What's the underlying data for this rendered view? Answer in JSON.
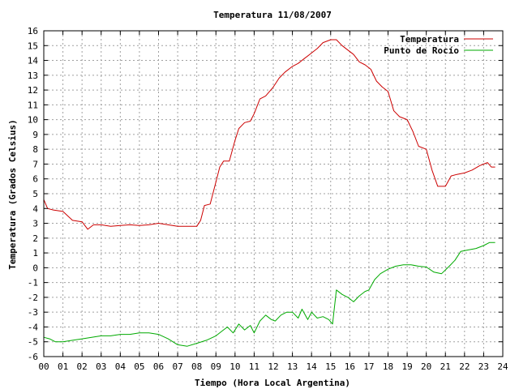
{
  "chart_data": {
    "type": "line",
    "title": "Temperatura 11/08/2007",
    "xlabel": "Tiempo (Hora Local Argentina)",
    "ylabel": "Temperatura (Grados Celsius)",
    "xlim": [
      0,
      24
    ],
    "ylim": [
      -6,
      16
    ],
    "x_ticks": [
      "00",
      "01",
      "02",
      "03",
      "04",
      "05",
      "06",
      "07",
      "08",
      "09",
      "10",
      "11",
      "12",
      "13",
      "14",
      "15",
      "16",
      "17",
      "18",
      "19",
      "20",
      "21",
      "22",
      "23",
      "24"
    ],
    "y_ticks": [
      "-6",
      "-5",
      "-4",
      "-3",
      "-2",
      "-1",
      "0",
      "1",
      "2",
      "3",
      "4",
      "5",
      "6",
      "7",
      "8",
      "9",
      "10",
      "11",
      "12",
      "13",
      "14",
      "15",
      "16"
    ],
    "grid": true,
    "legend_position": "top-right",
    "series": [
      {
        "name": "Temperatura",
        "color": "#cc0000",
        "points": [
          [
            0,
            4.6
          ],
          [
            0.2,
            4.0
          ],
          [
            0.5,
            3.9
          ],
          [
            1.0,
            3.8
          ],
          [
            1.5,
            3.2
          ],
          [
            2.0,
            3.1
          ],
          [
            2.3,
            2.6
          ],
          [
            2.6,
            2.9
          ],
          [
            3.0,
            2.9
          ],
          [
            3.5,
            2.8
          ],
          [
            4.0,
            2.85
          ],
          [
            4.5,
            2.9
          ],
          [
            5.0,
            2.85
          ],
          [
            5.5,
            2.9
          ],
          [
            6.0,
            3.0
          ],
          [
            6.5,
            2.9
          ],
          [
            7.0,
            2.8
          ],
          [
            7.5,
            2.8
          ],
          [
            8.0,
            2.8
          ],
          [
            8.2,
            3.2
          ],
          [
            8.4,
            4.2
          ],
          [
            8.7,
            4.3
          ],
          [
            9.0,
            5.8
          ],
          [
            9.2,
            6.8
          ],
          [
            9.4,
            7.2
          ],
          [
            9.7,
            7.2
          ],
          [
            10.0,
            8.6
          ],
          [
            10.2,
            9.4
          ],
          [
            10.5,
            9.8
          ],
          [
            10.8,
            9.9
          ],
          [
            11.0,
            10.4
          ],
          [
            11.3,
            11.4
          ],
          [
            11.6,
            11.6
          ],
          [
            12.0,
            12.2
          ],
          [
            12.3,
            12.8
          ],
          [
            12.6,
            13.2
          ],
          [
            13.0,
            13.6
          ],
          [
            13.3,
            13.8
          ],
          [
            13.6,
            14.1
          ],
          [
            14.0,
            14.5
          ],
          [
            14.3,
            14.8
          ],
          [
            14.6,
            15.2
          ],
          [
            15.0,
            15.4
          ],
          [
            15.3,
            15.4
          ],
          [
            15.6,
            15.0
          ],
          [
            15.9,
            14.7
          ],
          [
            16.2,
            14.4
          ],
          [
            16.5,
            13.9
          ],
          [
            16.8,
            13.7
          ],
          [
            17.1,
            13.4
          ],
          [
            17.4,
            12.6
          ],
          [
            17.7,
            12.2
          ],
          [
            18.0,
            11.9
          ],
          [
            18.3,
            10.6
          ],
          [
            18.6,
            10.2
          ],
          [
            19.0,
            10.0
          ],
          [
            19.3,
            9.2
          ],
          [
            19.6,
            8.2
          ],
          [
            20.0,
            8.0
          ],
          [
            20.3,
            6.6
          ],
          [
            20.6,
            5.5
          ],
          [
            21.0,
            5.5
          ],
          [
            21.3,
            6.2
          ],
          [
            21.6,
            6.3
          ],
          [
            22.0,
            6.4
          ],
          [
            22.4,
            6.6
          ],
          [
            22.8,
            6.9
          ],
          [
            23.0,
            7.0
          ],
          [
            23.2,
            7.1
          ],
          [
            23.4,
            6.8
          ],
          [
            23.6,
            6.8
          ]
        ]
      },
      {
        "name": "Punto de Rocío",
        "color": "#00aa00",
        "points": [
          [
            0,
            -4.7
          ],
          [
            0.3,
            -4.8
          ],
          [
            0.6,
            -5.0
          ],
          [
            1.0,
            -5.0
          ],
          [
            1.5,
            -4.9
          ],
          [
            2.0,
            -4.8
          ],
          [
            2.5,
            -4.7
          ],
          [
            3.0,
            -4.6
          ],
          [
            3.5,
            -4.6
          ],
          [
            4.0,
            -4.5
          ],
          [
            4.5,
            -4.5
          ],
          [
            5.0,
            -4.4
          ],
          [
            5.5,
            -4.4
          ],
          [
            6.0,
            -4.5
          ],
          [
            6.5,
            -4.8
          ],
          [
            7.0,
            -5.2
          ],
          [
            7.5,
            -5.3
          ],
          [
            8.0,
            -5.1
          ],
          [
            8.5,
            -4.9
          ],
          [
            9.0,
            -4.6
          ],
          [
            9.3,
            -4.3
          ],
          [
            9.6,
            -4.0
          ],
          [
            9.9,
            -4.4
          ],
          [
            10.2,
            -3.8
          ],
          [
            10.5,
            -4.2
          ],
          [
            10.8,
            -3.9
          ],
          [
            11.0,
            -4.4
          ],
          [
            11.3,
            -3.6
          ],
          [
            11.6,
            -3.2
          ],
          [
            11.9,
            -3.5
          ],
          [
            12.1,
            -3.6
          ],
          [
            12.4,
            -3.2
          ],
          [
            12.7,
            -3.0
          ],
          [
            13.0,
            -3.0
          ],
          [
            13.3,
            -3.4
          ],
          [
            13.5,
            -2.8
          ],
          [
            13.8,
            -3.5
          ],
          [
            14.0,
            -3.0
          ],
          [
            14.3,
            -3.4
          ],
          [
            14.6,
            -3.3
          ],
          [
            14.9,
            -3.5
          ],
          [
            15.1,
            -3.8
          ],
          [
            15.3,
            -1.5
          ],
          [
            15.6,
            -1.8
          ],
          [
            15.9,
            -2.0
          ],
          [
            16.2,
            -2.3
          ],
          [
            16.5,
            -1.9
          ],
          [
            16.8,
            -1.6
          ],
          [
            17.0,
            -1.5
          ],
          [
            17.3,
            -0.8
          ],
          [
            17.6,
            -0.4
          ],
          [
            18.0,
            -0.1
          ],
          [
            18.4,
            0.1
          ],
          [
            18.8,
            0.2
          ],
          [
            19.2,
            0.2
          ],
          [
            19.6,
            0.1
          ],
          [
            20.0,
            0.05
          ],
          [
            20.4,
            -0.3
          ],
          [
            20.8,
            -0.4
          ],
          [
            21.2,
            0.1
          ],
          [
            21.5,
            0.5
          ],
          [
            21.8,
            1.1
          ],
          [
            22.2,
            1.2
          ],
          [
            22.6,
            1.3
          ],
          [
            23.0,
            1.5
          ],
          [
            23.3,
            1.7
          ],
          [
            23.6,
            1.7
          ]
        ]
      }
    ]
  }
}
